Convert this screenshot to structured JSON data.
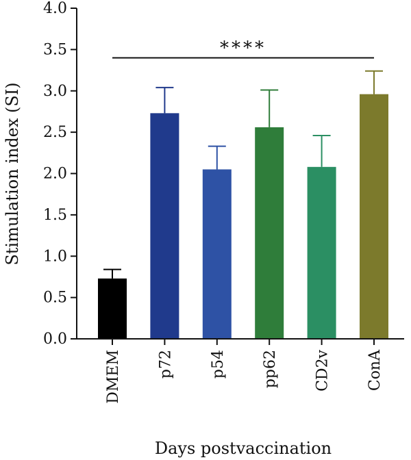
{
  "chart_data": {
    "type": "bar",
    "categories": [
      "DMEM",
      "p72",
      "p54",
      "pp62",
      "CD2v",
      "ConA"
    ],
    "values": [
      0.73,
      2.73,
      2.05,
      2.56,
      2.08,
      2.96
    ],
    "errors": [
      0.11,
      0.31,
      0.28,
      0.45,
      0.38,
      0.28
    ],
    "colors": [
      "#000000",
      "#203a8c",
      "#2e52a5",
      "#2f7d3a",
      "#2b8f63",
      "#7c7a2c"
    ],
    "xlabel": "Days postvaccination",
    "ylabel": "Stimulation index (SI)",
    "ylim": [
      0,
      4.0
    ],
    "yticks": [
      "0.0",
      "0.5",
      "1.0",
      "1.5",
      "2.0",
      "2.5",
      "3.0",
      "3.5",
      "4.0"
    ],
    "significance": {
      "label": "****",
      "y": 3.4,
      "from": "DMEM",
      "to": "ConA"
    },
    "grid": false,
    "legend": "none"
  }
}
